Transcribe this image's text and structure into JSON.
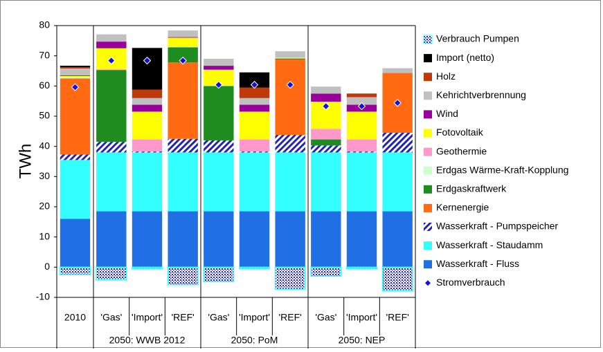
{
  "chart_data": {
    "type": "bar",
    "stacked": true,
    "y_label": "TWh",
    "categories": [
      "2010",
      "'Gas'",
      "'Import'",
      "'REF'",
      "'Gas'",
      "'Import'",
      "'REF'",
      "'Gas'",
      "'Import'",
      "'REF'"
    ],
    "groups": [
      null,
      "2050: WWB 2012",
      "2050: WWB 2012",
      "2050: WWB 2012",
      "2050: PoM",
      "2050: PoM",
      "2050: PoM",
      "2050: NEP",
      "2050: NEP",
      "2050: NEP"
    ],
    "ylim": [
      -10,
      80
    ],
    "yticks": [
      -10,
      0,
      10,
      20,
      30,
      40,
      50,
      60,
      70,
      80
    ],
    "grid": false,
    "legend": "right",
    "series": [
      {
        "name": "Wasserkraft - Fluss",
        "color": "#1f6fe5",
        "values": [
          16,
          18.5,
          18.5,
          18.5,
          18.5,
          18.5,
          18.5,
          18.5,
          18.5,
          18.5
        ]
      },
      {
        "name": "Wasserkraft - Staudamm",
        "color": "#33ffff",
        "values": [
          19.5,
          19.5,
          19.5,
          19.5,
          19.5,
          19.5,
          19.5,
          19.5,
          19.5,
          19.5
        ]
      },
      {
        "name": "Wasserkraft - Pumpspeicher",
        "color": "#2323b8",
        "pattern": "hatch",
        "values": [
          1.8,
          3.5,
          0.3,
          4.5,
          4,
          0.3,
          5.8,
          2.3,
          0.3,
          6.5
        ]
      },
      {
        "name": "Kernenergie",
        "color": "#ff6a13",
        "values": [
          25.2,
          0,
          0,
          25.3,
          0,
          0,
          25,
          0,
          0,
          19.8
        ]
      },
      {
        "name": "Erdgaskraftwerk",
        "color": "#1e8c1e",
        "values": [
          0,
          23.8,
          0,
          5,
          18,
          0,
          0.3,
          2,
          0,
          0
        ]
      },
      {
        "name": "Erdgas Wärme-Kraft-Kopplung",
        "color": "#ccffcc",
        "values": [
          0.5,
          0,
          0,
          0.2,
          0.2,
          0,
          0.1,
          0,
          0,
          0
        ]
      },
      {
        "name": "Geothermie",
        "color": "#ff99cc",
        "values": [
          0,
          0.2,
          4,
          0,
          0,
          4,
          0,
          3.5,
          4,
          0
        ]
      },
      {
        "name": "Fotovoltaik",
        "color": "#ffff00",
        "values": [
          0.3,
          7,
          9.2,
          3,
          5.2,
          9.2,
          0.2,
          9,
          9.2,
          0
        ]
      },
      {
        "name": "Wind",
        "color": "#990099",
        "values": [
          0.2,
          2.2,
          2.3,
          0.2,
          1.3,
          2.3,
          0,
          2.7,
          2.3,
          0
        ]
      },
      {
        "name": "Kehrichtverbrennung",
        "color": "#c0c0c0",
        "values": [
          2.3,
          2.4,
          2.2,
          2.2,
          2.3,
          2.2,
          2.1,
          2.3,
          2.5,
          1.6
        ]
      },
      {
        "name": "Holz",
        "color": "#c0390b",
        "values": [
          0.4,
          0,
          2.8,
          0,
          0,
          3.5,
          0,
          0,
          1.2,
          0
        ]
      },
      {
        "name": "Import (netto)",
        "color": "#000000",
        "values": [
          0.5,
          0,
          13.8,
          0,
          0,
          5,
          0,
          0,
          0,
          0
        ]
      },
      {
        "name": "Verbrauch Pumpen",
        "color": "#2323b8",
        "pattern": "dots",
        "values": [
          -2.5,
          -4.2,
          -0.5,
          -5.8,
          -4.8,
          -0.5,
          -7.3,
          -3,
          -0.5,
          -7.8
        ]
      },
      {
        "name": "Stromverbrauch",
        "color": "#1010e0",
        "type": "scatter",
        "marker": "diamond",
        "values": [
          59.6,
          68.4,
          68.4,
          68.4,
          60.4,
          60.4,
          60.4,
          53.3,
          53.3,
          54.4
        ]
      }
    ]
  }
}
